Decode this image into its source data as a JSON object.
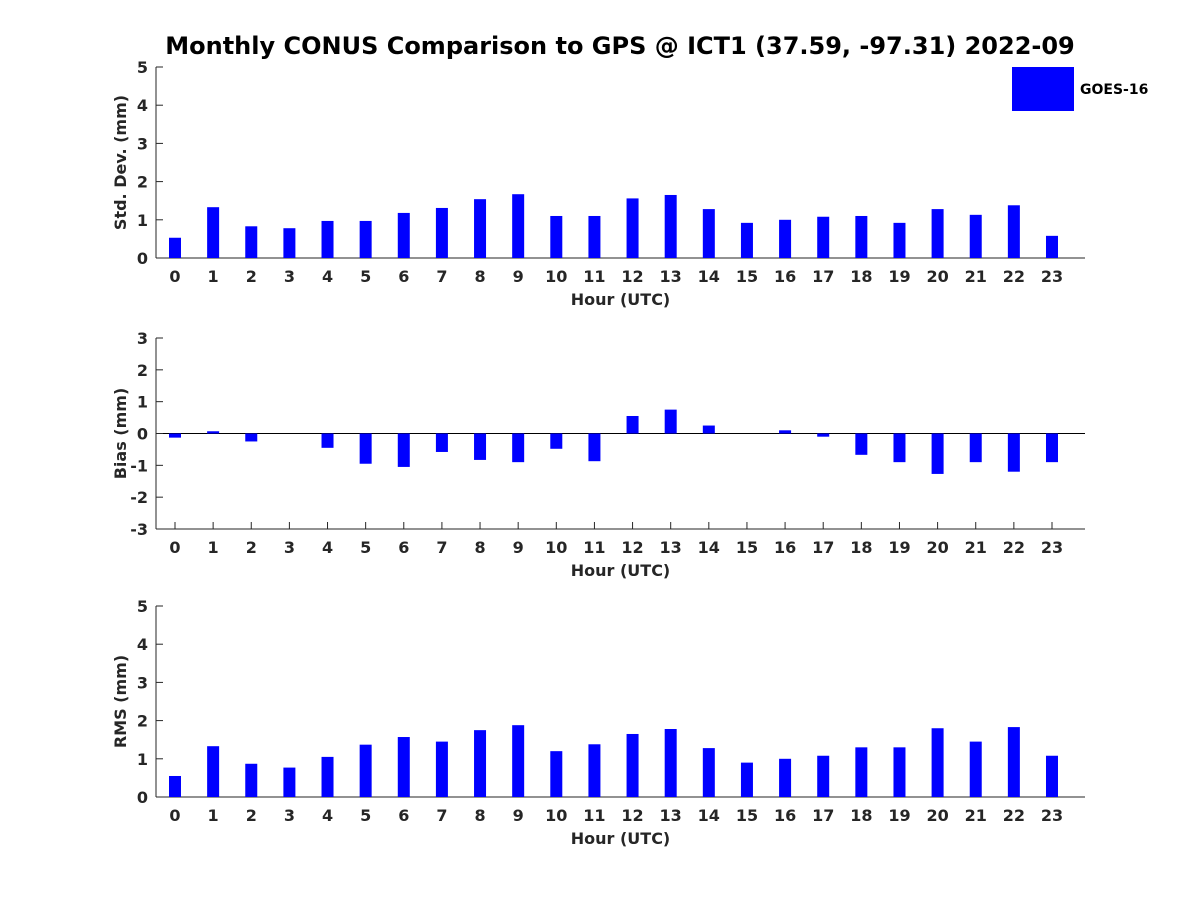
{
  "figure_title": "Monthly CONUS Comparison to GPS @ ICT1 (37.59, -97.31) 2022-09",
  "legend": {
    "label": "GOES-16",
    "color": "#0000ff"
  },
  "chart_data": [
    {
      "type": "bar",
      "title": "Monthly CONUS Comparison to GPS @ ICT1 (37.59, -97.31) 2022-09",
      "xlabel": "Hour (UTC)",
      "ylabel": "Std. Dev. (mm)",
      "ylim": [
        0,
        5
      ],
      "yticks": [
        0,
        1,
        2,
        3,
        4,
        5
      ],
      "categories": [
        "0",
        "1",
        "2",
        "3",
        "4",
        "5",
        "6",
        "7",
        "8",
        "9",
        "10",
        "11",
        "12",
        "13",
        "14",
        "15",
        "16",
        "17",
        "18",
        "19",
        "20",
        "21",
        "22",
        "23"
      ],
      "series": [
        {
          "name": "GOES-16",
          "color": "#0000ff",
          "values": [
            0.53,
            1.33,
            0.83,
            0.78,
            0.97,
            0.97,
            1.18,
            1.31,
            1.54,
            1.67,
            1.1,
            1.1,
            1.56,
            1.65,
            1.28,
            0.92,
            1.0,
            1.08,
            1.1,
            0.92,
            1.28,
            1.13,
            1.38,
            0.58
          ]
        }
      ],
      "grid": false,
      "legend_position": "top-right"
    },
    {
      "type": "bar",
      "xlabel": "Hour (UTC)",
      "ylabel": "Bias (mm)",
      "ylim": [
        -3,
        3
      ],
      "yticks": [
        -3,
        -2,
        -1,
        0,
        1,
        2,
        3
      ],
      "categories": [
        "0",
        "1",
        "2",
        "3",
        "4",
        "5",
        "6",
        "7",
        "8",
        "9",
        "10",
        "11",
        "12",
        "13",
        "14",
        "15",
        "16",
        "17",
        "18",
        "19",
        "20",
        "21",
        "22",
        "23"
      ],
      "series": [
        {
          "name": "GOES-16",
          "color": "#0000ff",
          "values": [
            -0.13,
            0.07,
            -0.25,
            0.0,
            -0.45,
            -0.95,
            -1.05,
            -0.58,
            -0.83,
            -0.9,
            -0.48,
            -0.87,
            0.55,
            0.75,
            0.25,
            0.0,
            0.1,
            -0.1,
            -0.67,
            -0.9,
            -1.27,
            -0.9,
            -1.2,
            -0.9
          ]
        }
      ],
      "grid": false
    },
    {
      "type": "bar",
      "xlabel": "Hour (UTC)",
      "ylabel": "RMS (mm)",
      "ylim": [
        0,
        5
      ],
      "yticks": [
        0,
        1,
        2,
        3,
        4,
        5
      ],
      "categories": [
        "0",
        "1",
        "2",
        "3",
        "4",
        "5",
        "6",
        "7",
        "8",
        "9",
        "10",
        "11",
        "12",
        "13",
        "14",
        "15",
        "16",
        "17",
        "18",
        "19",
        "20",
        "21",
        "22",
        "23"
      ],
      "series": [
        {
          "name": "GOES-16",
          "color": "#0000ff",
          "values": [
            0.55,
            1.33,
            0.87,
            0.77,
            1.05,
            1.37,
            1.57,
            1.45,
            1.75,
            1.88,
            1.2,
            1.38,
            1.65,
            1.78,
            1.28,
            0.9,
            1.0,
            1.08,
            1.3,
            1.3,
            1.8,
            1.45,
            1.83,
            1.08
          ]
        }
      ],
      "grid": false
    }
  ]
}
